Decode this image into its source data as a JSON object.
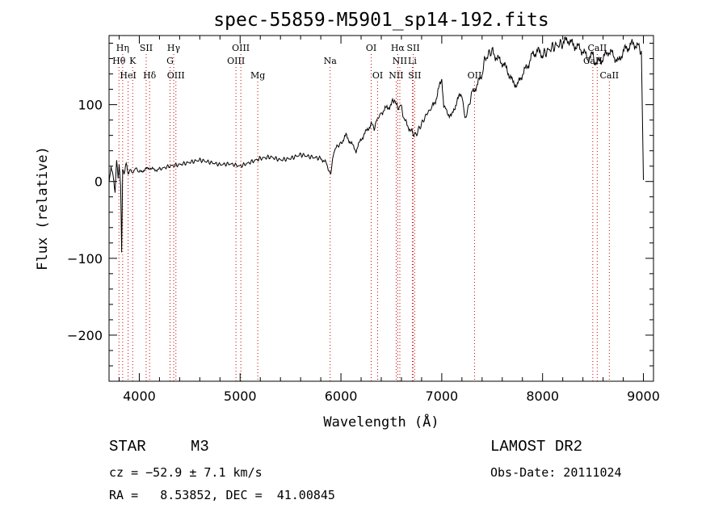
{
  "chart_data": {
    "type": "line",
    "title": "spec-55859-M5901_sp14-192.fits",
    "xlabel": "Wavelength (Å)",
    "ylabel": "Flux (relative)",
    "xlim": [
      3700,
      9100
    ],
    "ylim": [
      -260,
      190
    ],
    "x_ticks": [
      4000,
      5000,
      6000,
      7000,
      8000,
      9000
    ],
    "y_ticks": [
      -200,
      -100,
      0,
      100
    ],
    "grid": false,
    "series": [
      {
        "x": [
          3700,
          3720,
          3740,
          3760,
          3775,
          3790,
          3800,
          3815,
          3825,
          3835,
          3850,
          3870,
          3890,
          3910,
          3930,
          3960,
          4000,
          4050,
          4100,
          4150,
          4200,
          4300,
          4400,
          4500,
          4600,
          4700,
          4800,
          4900,
          5000,
          5100,
          5200,
          5300,
          5400,
          5500,
          5600,
          5700,
          5800,
          5850,
          5880,
          5900,
          5930,
          5960,
          6000,
          6050,
          6100,
          6150,
          6200,
          6250,
          6300,
          6330,
          6360,
          6400,
          6450,
          6500,
          6530,
          6560,
          6590,
          6620,
          6650,
          6700,
          6740,
          6780,
          6820,
          6860,
          6900,
          6950,
          7000,
          7020,
          7050,
          7100,
          7150,
          7200,
          7230,
          7270,
          7300,
          7350,
          7400,
          7430,
          7460,
          7500,
          7550,
          7600,
          7650,
          7700,
          7750,
          7800,
          7850,
          7900,
          7950,
          8000,
          8100,
          8200,
          8250,
          8300,
          8350,
          8400,
          8450,
          8500,
          8530,
          8550,
          8600,
          8650,
          8700,
          8750,
          8800,
          8850,
          8900,
          8950,
          8980,
          9000
        ],
        "y": [
          0,
          20,
          10,
          -15,
          30,
          5,
          20,
          -5,
          -90,
          15,
          10,
          25,
          8,
          15,
          10,
          18,
          12,
          15,
          18,
          15,
          16,
          20,
          22,
          25,
          28,
          25,
          22,
          23,
          20,
          25,
          30,
          32,
          28,
          30,
          35,
          32,
          30,
          25,
          15,
          10,
          40,
          45,
          50,
          60,
          50,
          40,
          55,
          65,
          75,
          70,
          80,
          90,
          95,
          100,
          108,
          95,
          100,
          85,
          75,
          65,
          60,
          70,
          80,
          90,
          95,
          110,
          135,
          100,
          90,
          85,
          105,
          115,
          80,
          100,
          115,
          125,
          140,
          160,
          165,
          170,
          160,
          155,
          145,
          130,
          125,
          140,
          150,
          165,
          170,
          165,
          175,
          180,
          185,
          178,
          175,
          170,
          160,
          165,
          150,
          155,
          160,
          170,
          165,
          155,
          170,
          175,
          180,
          175,
          170,
          2
        ]
      }
    ],
    "line_markers": [
      {
        "label": "Hη",
        "x": 3835,
        "row": 1
      },
      {
        "label": "Hθ",
        "x": 3798,
        "row": 2
      },
      {
        "label": "HeI",
        "x": 3889,
        "row": 3
      },
      {
        "label": "SII",
        "x": 4068,
        "row": 1
      },
      {
        "label": "K",
        "x": 3934,
        "row": 2
      },
      {
        "label": "Hδ",
        "x": 4102,
        "row": 3
      },
      {
        "label": "Hγ",
        "x": 4341,
        "row": 1
      },
      {
        "label": "G",
        "x": 4305,
        "row": 2
      },
      {
        "label": "OIII",
        "x": 4363,
        "row": 3
      },
      {
        "label": "OIII",
        "x": 5007,
        "row": 1
      },
      {
        "label": "OIII",
        "x": 4959,
        "row": 2
      },
      {
        "label": "Mg",
        "x": 5175,
        "row": 3
      },
      {
        "label": "Na",
        "x": 5893,
        "row": 2
      },
      {
        "label": "OI",
        "x": 6300,
        "row": 1
      },
      {
        "label": "OI",
        "x": 6364,
        "row": 3
      },
      {
        "label": "Hα",
        "x": 6563,
        "row": 1
      },
      {
        "label": "SII",
        "x": 6717,
        "row": 1
      },
      {
        "label": "NII",
        "x": 6584,
        "row": 2
      },
      {
        "label": "Li",
        "x": 6708,
        "row": 2
      },
      {
        "label": "NII",
        "x": 6548,
        "row": 3
      },
      {
        "label": "SII",
        "x": 6731,
        "row": 3
      },
      {
        "label": "OII",
        "x": 7325,
        "row": 3
      },
      {
        "label": "CaII",
        "x": 8542,
        "row": 1
      },
      {
        "label": "CaII",
        "x": 8498,
        "row": 2
      },
      {
        "label": "CaII",
        "x": 8662,
        "row": 3
      }
    ]
  },
  "info": {
    "object_class": "STAR",
    "subclass": "M3",
    "redshift_text": "cz = −52.9 ± 7.1 km/s",
    "coords_text": "RA =   8.53852, DEC =  41.00845",
    "survey": "LAMOST DR2",
    "obs_date": "Obs-Date: 20111024"
  }
}
